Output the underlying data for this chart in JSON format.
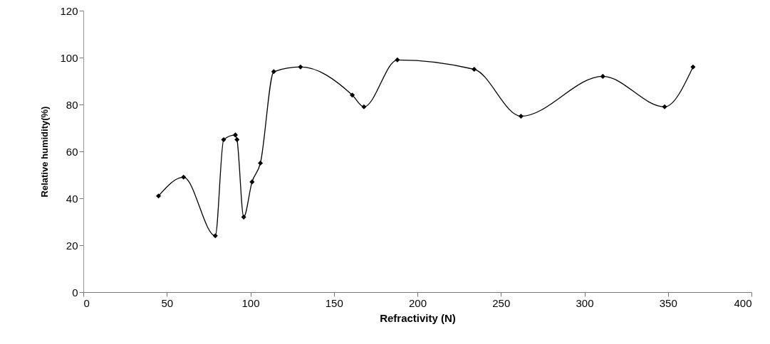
{
  "chart_data": {
    "type": "line",
    "xlabel": "Refractivity (N)",
    "ylabel": "Relative humidity(%)",
    "x": [
      45,
      60,
      79,
      84,
      91,
      92,
      96,
      101,
      106,
      114,
      130,
      161,
      168,
      188,
      234,
      262,
      311,
      348,
      365
    ],
    "series": [
      {
        "color": "#000000",
        "values": [
          41,
          49,
          24,
          65,
          67,
          65,
          32,
          47,
          55,
          94,
          96,
          84,
          79,
          99,
          95,
          75,
          92,
          79,
          96
        ]
      }
    ],
    "xlim": [
      0,
      400
    ],
    "xticks": [
      0,
      50,
      100,
      150,
      200,
      250,
      300,
      350,
      400
    ],
    "ylim": [
      0,
      120
    ],
    "yticks": [
      0,
      20,
      40,
      60,
      80,
      100,
      120
    ],
    "grid": false,
    "marker": "diamond",
    "line_style": "solid"
  }
}
